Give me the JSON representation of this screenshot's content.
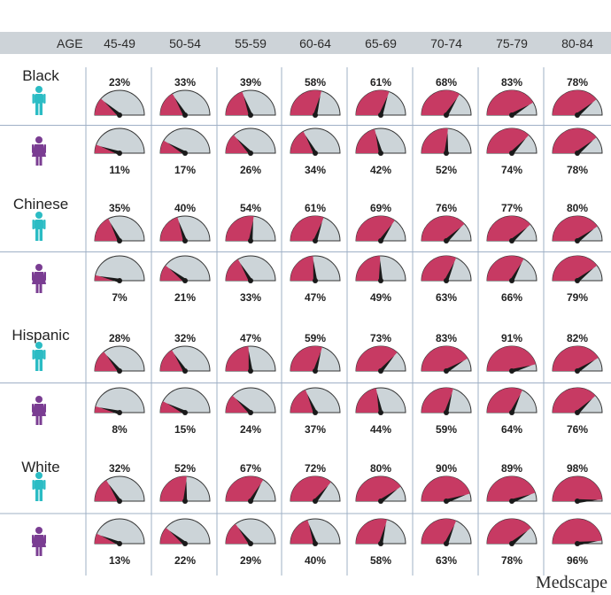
{
  "colors": {
    "header_bg": "#cdd3d8",
    "gauge_fill": "#c73a63",
    "gauge_bg": "#ccd4d8",
    "needle": "#1a1a1a",
    "male_icon": "#2bbcc4",
    "female_icon": "#7a3d92",
    "grid": "#9fb0c6"
  },
  "header": {
    "age_label": "AGE",
    "age_groups": [
      "45-49",
      "50-54",
      "55-59",
      "60-64",
      "65-69",
      "70-74",
      "75-79",
      "80-84"
    ]
  },
  "logo": "Medscape",
  "chart_data": {
    "type": "gauge-grid",
    "categories": [
      "45-49",
      "50-54",
      "55-59",
      "60-64",
      "65-69",
      "70-74",
      "75-79",
      "80-84"
    ],
    "unit": "%",
    "groups": [
      {
        "name": "Black",
        "rows": [
          {
            "sex": "male",
            "icon": "male-icon",
            "values": [
              23,
              33,
              39,
              58,
              61,
              68,
              83,
              78
            ]
          },
          {
            "sex": "female",
            "icon": "female-icon",
            "values": [
              11,
              17,
              26,
              34,
              42,
              52,
              74,
              78
            ]
          }
        ]
      },
      {
        "name": "Chinese",
        "rows": [
          {
            "sex": "male",
            "icon": "male-icon",
            "values": [
              35,
              40,
              54,
              61,
              69,
              76,
              77,
              80
            ]
          },
          {
            "sex": "female",
            "icon": "female-icon",
            "values": [
              7,
              21,
              33,
              47,
              49,
              63,
              66,
              79
            ]
          }
        ]
      },
      {
        "name": "Hispanic",
        "rows": [
          {
            "sex": "male",
            "icon": "male-icon",
            "values": [
              28,
              32,
              47,
              59,
              73,
              83,
              91,
              82
            ]
          },
          {
            "sex": "female",
            "icon": "female-icon",
            "values": [
              8,
              15,
              24,
              37,
              44,
              59,
              64,
              76
            ]
          }
        ]
      },
      {
        "name": "White",
        "rows": [
          {
            "sex": "male",
            "icon": "male-icon",
            "values": [
              32,
              52,
              67,
              72,
              80,
              90,
              89,
              98
            ]
          },
          {
            "sex": "female",
            "icon": "female-icon",
            "values": [
              13,
              22,
              29,
              40,
              58,
              63,
              78,
              96
            ]
          }
        ]
      }
    ]
  }
}
